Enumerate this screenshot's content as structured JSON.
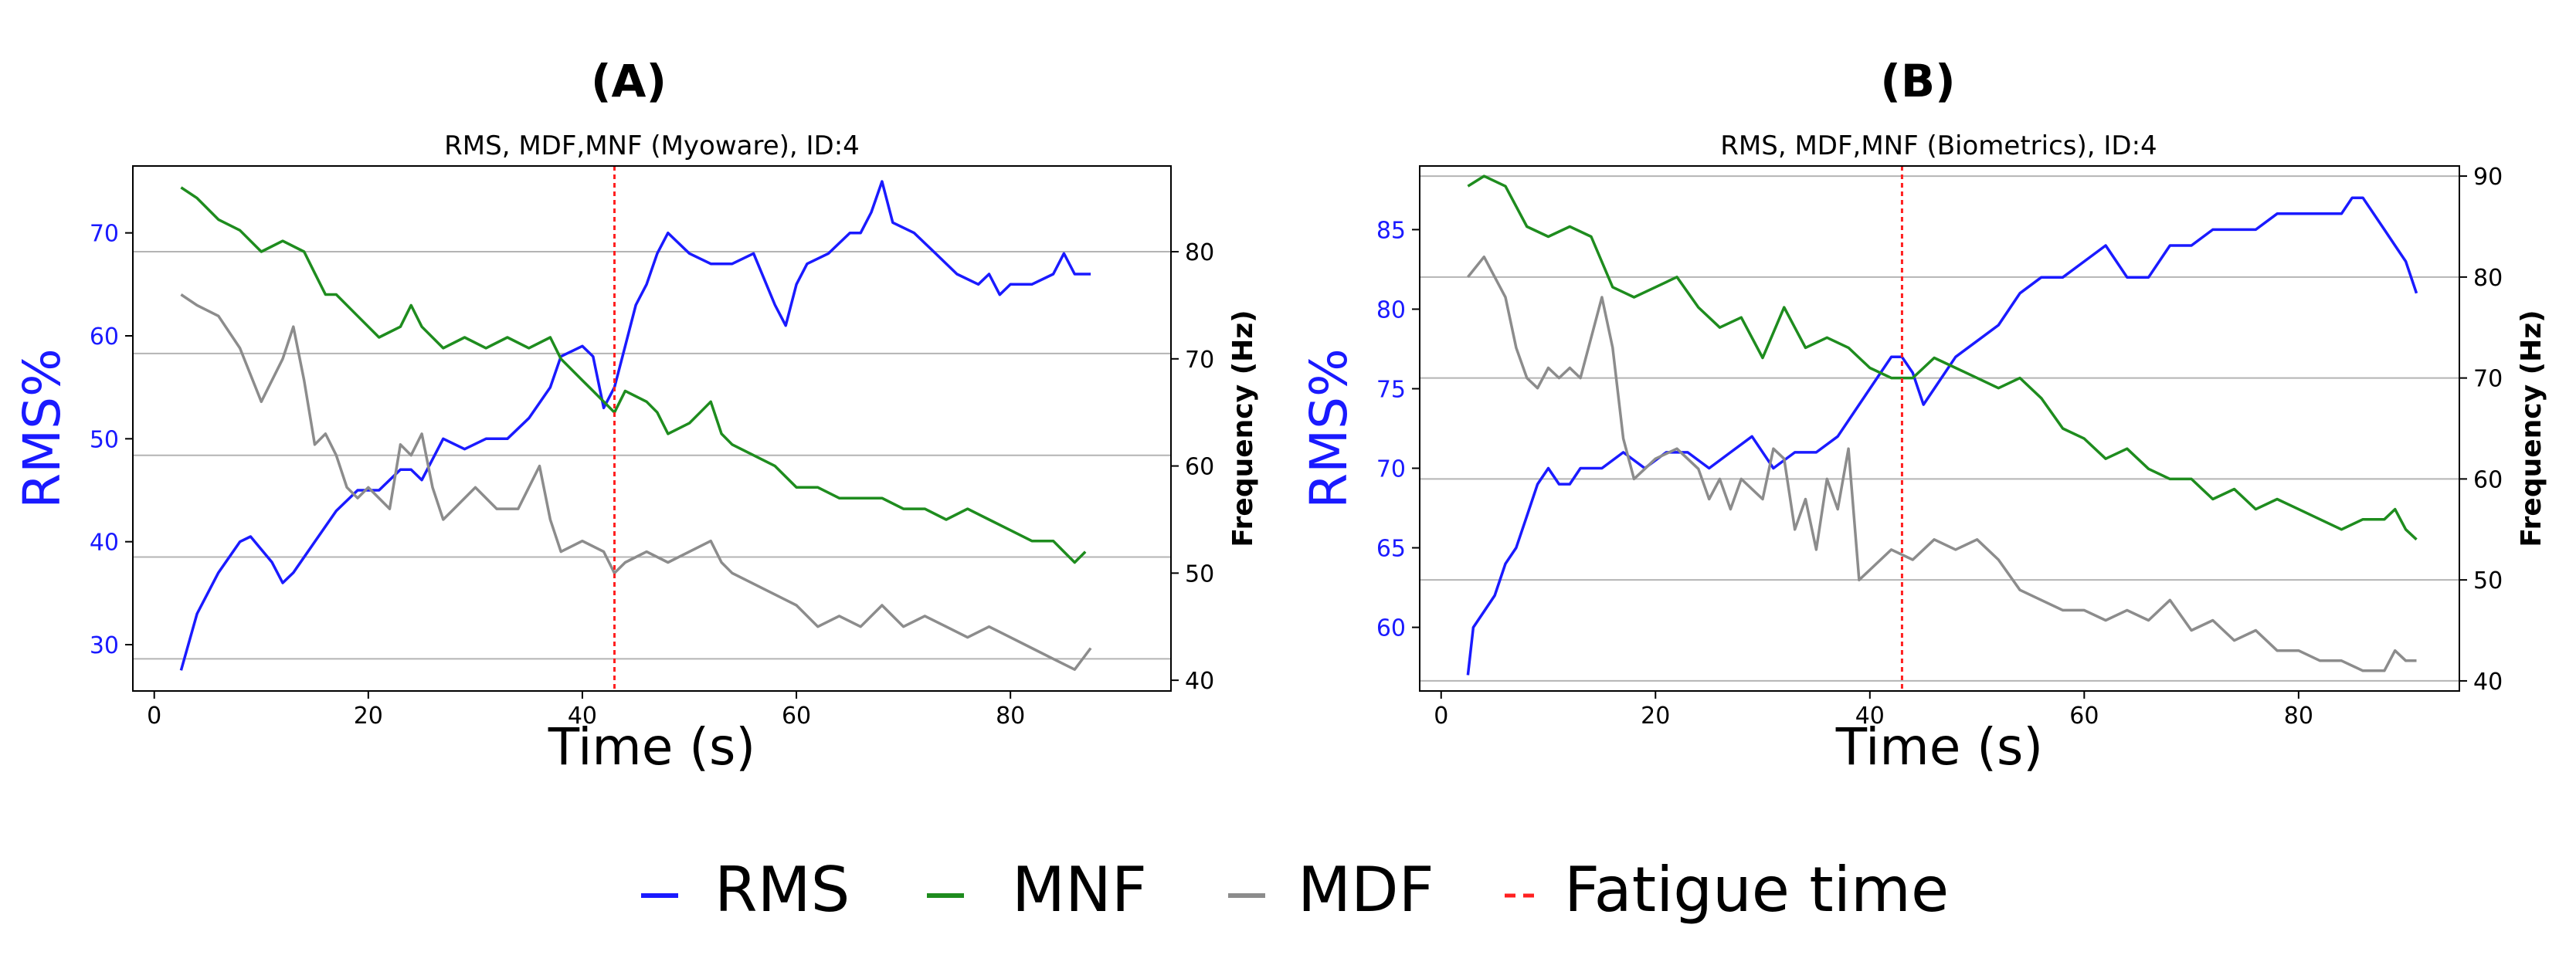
{
  "figure": {
    "legend": [
      {
        "label": "RMS",
        "color": "#1a1aff",
        "style": "solid"
      },
      {
        "label": "MNF",
        "color": "#1e8c1e",
        "style": "solid"
      },
      {
        "label": "MDF",
        "color": "#8c8c8c",
        "style": "solid"
      },
      {
        "label": "Fatigue time",
        "color": "#ff2020",
        "style": "dashed"
      }
    ]
  },
  "chart_data": [
    {
      "panel_label": "(A)",
      "type": "line",
      "title": "RMS, MDF,MNF (Myoware), ID:4",
      "xlabel": "Time (s)",
      "ylabel": "RMS%",
      "ylabel_right": "Frequency (Hz)",
      "xlim": [
        -2,
        95
      ],
      "xticks": [
        0,
        20,
        40,
        60,
        80
      ],
      "ylim": [
        25.5,
        76.5
      ],
      "yticks": [
        30,
        40,
        50,
        60,
        70
      ],
      "ylim_right": [
        39,
        88
      ],
      "yticks_right": [
        40,
        50,
        60,
        70,
        80
      ],
      "gridlines_right": [
        42,
        51.5,
        61,
        70.5,
        80
      ],
      "fatigue_time": 43,
      "series": [
        {
          "name": "RMS",
          "axis": "left",
          "color": "#1a1aff",
          "x": [
            2.5,
            4,
            6,
            8,
            9,
            11,
            12,
            13,
            15,
            17,
            19,
            21,
            23,
            24,
            25,
            27,
            29,
            31,
            33,
            35,
            37,
            38,
            40,
            41,
            42,
            43,
            44,
            45,
            46,
            47,
            48,
            49,
            50,
            52,
            54,
            56,
            58,
            59,
            60,
            61,
            63,
            65,
            66,
            67,
            68,
            69,
            71,
            73,
            75,
            77,
            78,
            79,
            80,
            82,
            84,
            85,
            86,
            87.5
          ],
          "y": [
            27.5,
            33,
            37,
            40,
            40.5,
            38,
            36,
            37,
            40,
            43,
            45,
            45,
            47,
            47,
            46,
            50,
            49,
            50,
            50,
            52,
            55,
            58,
            59,
            58,
            53,
            55,
            59,
            63,
            65,
            68,
            70,
            69,
            68,
            67,
            67,
            68,
            63,
            61,
            65,
            67,
            68,
            70,
            70,
            72,
            75,
            71,
            70,
            68,
            66,
            65,
            66,
            64,
            65,
            65,
            66,
            68,
            66,
            66
          ]
        },
        {
          "name": "MNF",
          "axis": "right",
          "color": "#1e8c1e",
          "x": [
            2.5,
            4,
            6,
            8,
            10,
            12,
            14,
            15,
            16,
            17,
            19,
            21,
            23,
            24,
            25,
            27,
            29,
            31,
            33,
            35,
            37,
            38,
            40,
            41,
            43,
            44,
            46,
            47,
            48,
            50,
            51,
            52,
            53,
            54,
            56,
            58,
            60,
            62,
            64,
            66,
            68,
            70,
            72,
            74,
            76,
            78,
            80,
            82,
            84,
            85,
            86,
            87
          ],
          "y": [
            86,
            85,
            83,
            82,
            80,
            81,
            80,
            78,
            76,
            76,
            74,
            72,
            73,
            75,
            73,
            71,
            72,
            71,
            72,
            71,
            72,
            70,
            68,
            67,
            65,
            67,
            66,
            65,
            63,
            64,
            65,
            66,
            63,
            62,
            61,
            60,
            58,
            58,
            57,
            57,
            57,
            56,
            56,
            55,
            56,
            55,
            54,
            53,
            53,
            52,
            51,
            52
          ]
        },
        {
          "name": "MDF",
          "axis": "right",
          "color": "#8c8c8c",
          "x": [
            2.5,
            4,
            6,
            8,
            10,
            12,
            13,
            14,
            15,
            16,
            17,
            18,
            19,
            20,
            22,
            23,
            24,
            25,
            26,
            27,
            28,
            30,
            32,
            34,
            36,
            37,
            38,
            40,
            42,
            43,
            44,
            46,
            48,
            50,
            52,
            53,
            54,
            56,
            58,
            60,
            62,
            64,
            66,
            68,
            70,
            72,
            74,
            76,
            78,
            80,
            82,
            84,
            86,
            87.5
          ],
          "y": [
            76,
            75,
            74,
            71,
            66,
            70,
            73,
            68,
            62,
            63,
            61,
            58,
            57,
            58,
            56,
            62,
            61,
            63,
            58,
            55,
            56,
            58,
            56,
            56,
            60,
            55,
            52,
            53,
            52,
            50,
            51,
            52,
            51,
            52,
            53,
            51,
            50,
            49,
            48,
            47,
            45,
            46,
            45,
            47,
            45,
            46,
            45,
            44,
            45,
            44,
            43,
            42,
            41,
            43
          ]
        }
      ]
    },
    {
      "panel_label": "(B)",
      "type": "line",
      "title": "RMS, MDF,MNF (Biometrics), ID:4",
      "xlabel": "Time (s)",
      "ylabel": "RMS%",
      "ylabel_right": "Frequency (Hz)",
      "xlim": [
        -2,
        95
      ],
      "xticks": [
        0,
        20,
        40,
        60,
        80
      ],
      "ylim": [
        56,
        89
      ],
      "yticks": [
        60,
        65,
        70,
        75,
        80,
        85
      ],
      "ylim_right": [
        39,
        91
      ],
      "yticks_right": [
        40,
        50,
        60,
        70,
        80,
        90
      ],
      "gridlines_right": [
        40,
        50,
        60,
        70,
        80,
        90
      ],
      "fatigue_time": 43,
      "series": [
        {
          "name": "RMS",
          "axis": "left",
          "color": "#1a1aff",
          "x": [
            2.5,
            3,
            4,
            5,
            6,
            7,
            8,
            9,
            10,
            11,
            12,
            13,
            15,
            17,
            19,
            21,
            23,
            25,
            27,
            29,
            31,
            33,
            35,
            37,
            39,
            41,
            42,
            43,
            44,
            45,
            46,
            48,
            50,
            52,
            54,
            56,
            58,
            60,
            62,
            63,
            64,
            66,
            68,
            70,
            72,
            74,
            76,
            78,
            80,
            82,
            84,
            85,
            86,
            88,
            89,
            90,
            91
          ],
          "y": [
            57,
            60,
            61,
            62,
            64,
            65,
            67,
            69,
            70,
            69,
            69,
            70,
            70,
            71,
            70,
            71,
            71,
            70,
            71,
            72,
            70,
            71,
            71,
            72,
            74,
            76,
            77,
            77,
            76,
            74,
            75,
            77,
            78,
            79,
            81,
            82,
            82,
            83,
            84,
            83,
            82,
            82,
            84,
            84,
            85,
            85,
            85,
            86,
            86,
            86,
            86,
            87,
            87,
            85,
            84,
            83,
            81
          ]
        },
        {
          "name": "MNF",
          "axis": "right",
          "color": "#1e8c1e",
          "x": [
            2.5,
            4,
            6,
            8,
            10,
            12,
            14,
            16,
            18,
            20,
            22,
            24,
            26,
            28,
            30,
            32,
            34,
            36,
            38,
            40,
            42,
            43,
            44,
            46,
            48,
            50,
            52,
            54,
            56,
            58,
            60,
            62,
            64,
            66,
            68,
            70,
            72,
            74,
            76,
            78,
            80,
            82,
            84,
            86,
            88,
            89,
            90,
            91
          ],
          "y": [
            89,
            90,
            89,
            85,
            84,
            85,
            84,
            79,
            78,
            79,
            80,
            77,
            75,
            76,
            72,
            77,
            73,
            74,
            73,
            71,
            70,
            70,
            70,
            72,
            71,
            70,
            69,
            70,
            68,
            65,
            64,
            62,
            63,
            61,
            60,
            60,
            58,
            59,
            57,
            58,
            57,
            56,
            55,
            56,
            56,
            57,
            55,
            54
          ]
        },
        {
          "name": "MDF",
          "axis": "right",
          "color": "#8c8c8c",
          "x": [
            2.5,
            4,
            6,
            7,
            8,
            9,
            10,
            11,
            12,
            13,
            14,
            15,
            16,
            17,
            18,
            19,
            20,
            22,
            24,
            25,
            26,
            27,
            28,
            30,
            31,
            32,
            33,
            34,
            35,
            36,
            37,
            38,
            39,
            40,
            42,
            44,
            46,
            48,
            50,
            52,
            54,
            56,
            58,
            60,
            62,
            64,
            66,
            68,
            70,
            72,
            74,
            76,
            78,
            80,
            82,
            84,
            86,
            88,
            89,
            90,
            91
          ],
          "y": [
            80,
            82,
            78,
            73,
            70,
            69,
            71,
            70,
            71,
            70,
            74,
            78,
            73,
            64,
            60,
            61,
            62,
            63,
            61,
            58,
            60,
            57,
            60,
            58,
            63,
            62,
            55,
            58,
            53,
            60,
            57,
            63,
            50,
            51,
            53,
            52,
            54,
            53,
            54,
            52,
            49,
            48,
            47,
            47,
            46,
            47,
            46,
            48,
            45,
            46,
            44,
            45,
            43,
            43,
            42,
            42,
            41,
            41,
            43,
            42,
            42
          ]
        }
      ]
    }
  ]
}
